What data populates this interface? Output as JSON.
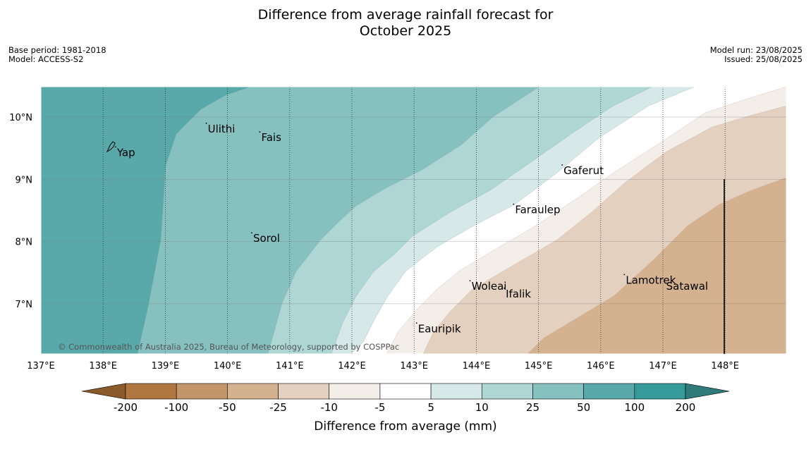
{
  "title_line1": "Difference from average rainfall forecast for",
  "title_line2": "October 2025",
  "base_period": "Base period: 1981-2018",
  "model": "Model: ACCESS-S2",
  "model_run": "Model run: 23/08/2025",
  "issued": "Issued: 25/08/2025",
  "copyright": "© Commonwealth of Australia 2025, Bureau of Meteorology, supported by COSPPac",
  "longitude_ticks": [
    "137°E",
    "138°E",
    "139°E",
    "140°E",
    "141°E",
    "142°E",
    "143°E",
    "144°E",
    "145°E",
    "146°E",
    "147°E",
    "148°E"
  ],
  "latitude_ticks": [
    "10°N",
    "9°N",
    "8°N",
    "7°N"
  ],
  "places": [
    {
      "name": "Yap",
      "lon": 138.2,
      "lat": 9.52
    },
    {
      "name": "Ulithi",
      "lon": 139.66,
      "lat": 9.9
    },
    {
      "name": "Fais",
      "lon": 140.52,
      "lat": 9.76
    },
    {
      "name": "Gaferut",
      "lon": 145.38,
      "lat": 9.23
    },
    {
      "name": "Faraulep",
      "lon": 144.6,
      "lat": 8.6
    },
    {
      "name": "Sorol",
      "lon": 140.39,
      "lat": 8.14
    },
    {
      "name": "Woleai",
      "lon": 143.9,
      "lat": 7.37
    },
    {
      "name": "Ifalik",
      "lon": 144.45,
      "lat": 7.25
    },
    {
      "name": "Lamotrek",
      "lon": 146.38,
      "lat": 7.47
    },
    {
      "name": "Satawal",
      "lon": 147.03,
      "lat": 7.37
    },
    {
      "name": "Eauripik",
      "lon": 143.04,
      "lat": 6.69
    }
  ],
  "legend": {
    "label": "Difference from average (mm)",
    "tick_labels": [
      "-200",
      "-100",
      "-50",
      "-25",
      "-10",
      "-5",
      "5",
      "10",
      "25",
      "50",
      "100",
      "200"
    ],
    "colors": [
      "#8b5a2b",
      "#b07840",
      "#c4956a",
      "#d4b18f",
      "#e4d0bf",
      "#f3eee8",
      "#ffffff",
      "#d6e9e8",
      "#add6d5",
      "#86c1c0",
      "#5aa9aa",
      "#36999a",
      "#2f7a7b"
    ]
  }
}
